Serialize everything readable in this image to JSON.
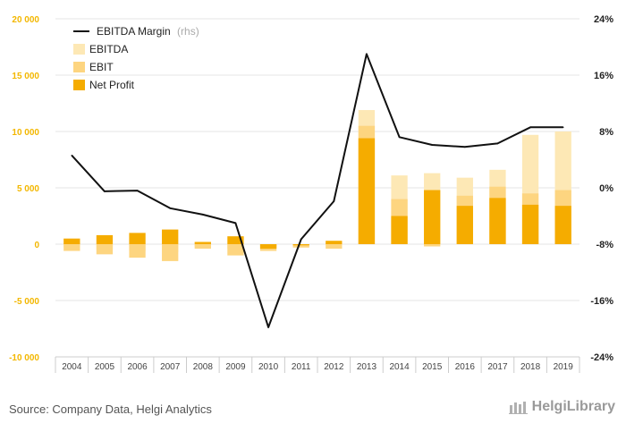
{
  "chart_data": {
    "type": "bar",
    "categories": [
      "2004",
      "2005",
      "2006",
      "2007",
      "2008",
      "2009",
      "2010",
      "2011",
      "2012",
      "2013",
      "2014",
      "2015",
      "2016",
      "2017",
      "2018",
      "2019"
    ],
    "series": [
      {
        "name": "EBITDA",
        "axis": "left",
        "kind": "bar",
        "color": "#fde8b5",
        "values": [
          -300,
          -500,
          -600,
          -700,
          -200,
          -400,
          -200,
          -100,
          -100,
          11900,
          6100,
          6300,
          5900,
          6600,
          9700,
          10000
        ]
      },
      {
        "name": "EBIT",
        "axis": "left",
        "kind": "bar",
        "color": "#fdd580",
        "values": [
          -600,
          -900,
          -1200,
          -1500,
          -400,
          -1000,
          -600,
          -300,
          -400,
          10500,
          4000,
          -200,
          4300,
          5100,
          4500,
          4800
        ]
      },
      {
        "name": "Net Profit",
        "axis": "left",
        "kind": "bar",
        "color": "#f5ac00",
        "values": [
          500,
          800,
          1000,
          1300,
          200,
          700,
          -400,
          -100,
          300,
          9400,
          2500,
          4800,
          3400,
          4100,
          3500,
          3400
        ]
      },
      {
        "name": "EBITDA Margin",
        "name_suffix": "(rhs)",
        "axis": "right",
        "kind": "line",
        "color": "#111111",
        "values": [
          4.6,
          -0.5,
          -0.4,
          -2.9,
          -3.8,
          -5.0,
          -19.8,
          -7.3,
          -1.9,
          19.0,
          7.2,
          6.1,
          5.8,
          6.3,
          8.6,
          8.6
        ]
      }
    ],
    "ylim_left": [
      -10000,
      20000
    ],
    "ytick_labels_left": [
      "20 000",
      "15 000",
      "10 000",
      "5 000",
      "0",
      "-5 000",
      "-10 000"
    ],
    "ylim_right": [
      -24,
      24
    ],
    "ytick_labels_right": [
      "24%",
      "16%",
      "8%",
      "0%",
      "-8%",
      "-16%",
      "-24%"
    ],
    "grid": true,
    "legend_position": "top-left"
  },
  "source_text": "Source: Company Data, Helgi Analytics",
  "brand_text": "HelgiLibrary"
}
